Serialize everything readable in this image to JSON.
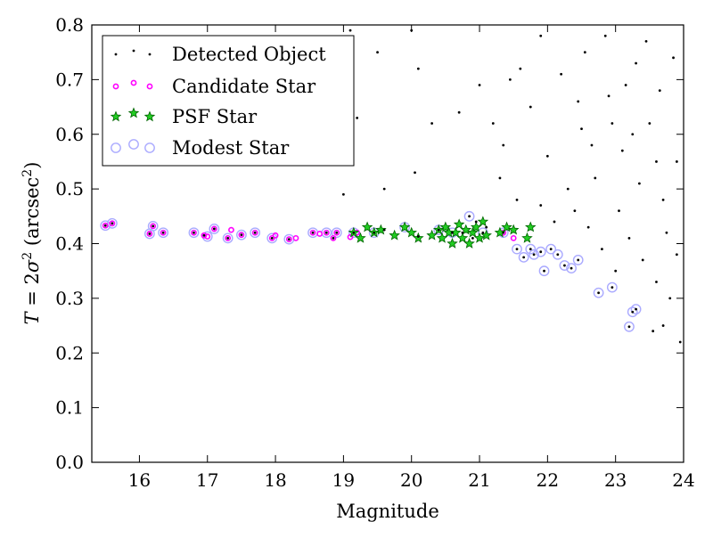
{
  "chart_data": {
    "type": "scatter",
    "title": "",
    "xlabel": "Magnitude",
    "ylabel": "T = 2σ² (arcsec²)",
    "ylabel_parts": {
      "lead": "T",
      "eq": " = 2",
      "sym": "σ",
      "sup1": "2",
      "mid": " (arcsec",
      "sup2": "2",
      "tail": ")"
    },
    "xlim": [
      15.3,
      24.0
    ],
    "ylim": [
      0.0,
      0.8
    ],
    "xticks": [
      16,
      17,
      18,
      19,
      20,
      21,
      22,
      23,
      24
    ],
    "xtick_labels": [
      "16",
      "17",
      "18",
      "19",
      "20",
      "21",
      "22",
      "23",
      "24"
    ],
    "yticks": [
      0.0,
      0.1,
      0.2,
      0.3,
      0.4,
      0.5,
      0.6,
      0.7,
      0.8
    ],
    "ytick_labels": [
      "0.0",
      "0.1",
      "0.2",
      "0.3",
      "0.4",
      "0.5",
      "0.6",
      "0.7",
      "0.8"
    ],
    "grid": false,
    "legend_position": "top-left",
    "colors": {
      "detected": "#000000",
      "candidate": "#ff00ff",
      "psf_fill": "#22cc22",
      "psf_edge": "#006400",
      "modest": "#aaaaff"
    },
    "series": [
      {
        "name": "Detected Object",
        "marker": "dot",
        "points": [
          [
            15.5,
            0.433
          ],
          [
            15.6,
            0.437
          ],
          [
            16.15,
            0.418
          ],
          [
            16.2,
            0.432
          ],
          [
            16.35,
            0.42
          ],
          [
            16.8,
            0.42
          ],
          [
            16.95,
            0.415
          ],
          [
            17.1,
            0.427
          ],
          [
            17.3,
            0.41
          ],
          [
            17.5,
            0.416
          ],
          [
            17.7,
            0.42
          ],
          [
            17.95,
            0.41
          ],
          [
            18.2,
            0.408
          ],
          [
            18.55,
            0.42
          ],
          [
            18.75,
            0.42
          ],
          [
            18.85,
            0.41
          ],
          [
            18.9,
            0.42
          ],
          [
            19.15,
            0.42
          ],
          [
            19.45,
            0.42
          ],
          [
            19.6,
            0.425
          ],
          [
            20.1,
            0.413
          ],
          [
            20.4,
            0.425
          ],
          [
            20.6,
            0.42
          ],
          [
            20.75,
            0.42
          ],
          [
            20.9,
            0.41
          ],
          [
            20.95,
            0.44
          ],
          [
            21.05,
            0.42
          ],
          [
            21.1,
            0.43
          ],
          [
            21.35,
            0.42
          ],
          [
            21.55,
            0.39
          ],
          [
            21.65,
            0.375
          ],
          [
            21.75,
            0.39
          ],
          [
            21.8,
            0.38
          ],
          [
            21.9,
            0.385
          ],
          [
            21.95,
            0.35
          ],
          [
            22.05,
            0.39
          ],
          [
            22.15,
            0.38
          ],
          [
            22.25,
            0.36
          ],
          [
            22.35,
            0.355
          ],
          [
            22.45,
            0.37
          ],
          [
            22.75,
            0.31
          ],
          [
            22.95,
            0.32
          ],
          [
            23.25,
            0.275
          ],
          [
            23.3,
            0.28
          ],
          [
            23.2,
            0.248
          ],
          [
            20.85,
            0.45
          ],
          [
            19.0,
            0.49
          ],
          [
            19.6,
            0.5
          ],
          [
            20.05,
            0.53
          ],
          [
            20.3,
            0.62
          ],
          [
            20.7,
            0.64
          ],
          [
            21.0,
            0.69
          ],
          [
            20.1,
            0.72
          ],
          [
            19.1,
            0.79
          ],
          [
            19.2,
            0.63
          ],
          [
            19.5,
            0.75
          ],
          [
            20.0,
            0.79
          ],
          [
            21.2,
            0.62
          ],
          [
            21.35,
            0.58
          ],
          [
            21.6,
            0.72
          ],
          [
            21.9,
            0.78
          ],
          [
            22.2,
            0.71
          ],
          [
            22.5,
            0.61
          ],
          [
            22.7,
            0.52
          ],
          [
            22.9,
            0.67
          ],
          [
            23.1,
            0.57
          ],
          [
            23.3,
            0.73
          ],
          [
            23.5,
            0.62
          ],
          [
            23.7,
            0.48
          ],
          [
            23.9,
            0.55
          ],
          [
            22.1,
            0.44
          ],
          [
            22.4,
            0.46
          ],
          [
            22.6,
            0.43
          ],
          [
            22.8,
            0.39
          ],
          [
            23.0,
            0.35
          ],
          [
            23.2,
            0.41
          ],
          [
            23.4,
            0.37
          ],
          [
            23.6,
            0.33
          ],
          [
            23.8,
            0.3
          ],
          [
            23.95,
            0.22
          ],
          [
            23.7,
            0.25
          ],
          [
            23.55,
            0.24
          ],
          [
            22.3,
            0.5
          ],
          [
            22.0,
            0.56
          ],
          [
            21.75,
            0.65
          ],
          [
            21.45,
            0.7
          ],
          [
            22.55,
            0.75
          ],
          [
            22.85,
            0.78
          ],
          [
            23.15,
            0.69
          ],
          [
            23.45,
            0.77
          ],
          [
            23.65,
            0.68
          ],
          [
            23.85,
            0.74
          ],
          [
            21.3,
            0.52
          ],
          [
            21.55,
            0.48
          ],
          [
            21.9,
            0.47
          ],
          [
            22.65,
            0.58
          ],
          [
            23.05,
            0.46
          ],
          [
            23.35,
            0.51
          ],
          [
            23.75,
            0.42
          ],
          [
            23.9,
            0.38
          ],
          [
            22.95,
            0.62
          ],
          [
            23.25,
            0.6
          ],
          [
            23.6,
            0.55
          ],
          [
            22.45,
            0.66
          ]
        ]
      },
      {
        "name": "Candidate Star",
        "marker": "small-circle",
        "points": [
          [
            15.5,
            0.433
          ],
          [
            15.6,
            0.437
          ],
          [
            16.15,
            0.418
          ],
          [
            16.2,
            0.432
          ],
          [
            16.35,
            0.42
          ],
          [
            16.8,
            0.42
          ],
          [
            16.95,
            0.415
          ],
          [
            17.0,
            0.413
          ],
          [
            17.1,
            0.427
          ],
          [
            17.3,
            0.41
          ],
          [
            17.35,
            0.425
          ],
          [
            17.5,
            0.416
          ],
          [
            17.7,
            0.42
          ],
          [
            17.95,
            0.41
          ],
          [
            18.0,
            0.415
          ],
          [
            18.2,
            0.408
          ],
          [
            18.3,
            0.41
          ],
          [
            18.55,
            0.42
          ],
          [
            18.65,
            0.418
          ],
          [
            18.75,
            0.42
          ],
          [
            18.85,
            0.41
          ],
          [
            18.9,
            0.42
          ],
          [
            19.1,
            0.412
          ],
          [
            19.2,
            0.42
          ],
          [
            21.35,
            0.42
          ],
          [
            21.5,
            0.41
          ]
        ]
      },
      {
        "name": "PSF Star",
        "marker": "star",
        "points": [
          [
            19.15,
            0.42
          ],
          [
            19.25,
            0.41
          ],
          [
            19.35,
            0.43
          ],
          [
            19.45,
            0.42
          ],
          [
            19.55,
            0.425
          ],
          [
            19.75,
            0.415
          ],
          [
            19.9,
            0.43
          ],
          [
            20.0,
            0.42
          ],
          [
            20.1,
            0.41
          ],
          [
            20.3,
            0.415
          ],
          [
            20.4,
            0.425
          ],
          [
            20.45,
            0.41
          ],
          [
            20.5,
            0.43
          ],
          [
            20.55,
            0.42
          ],
          [
            20.6,
            0.4
          ],
          [
            20.65,
            0.42
          ],
          [
            20.7,
            0.435
          ],
          [
            20.75,
            0.41
          ],
          [
            20.8,
            0.425
          ],
          [
            20.85,
            0.4
          ],
          [
            20.9,
            0.42
          ],
          [
            20.95,
            0.43
          ],
          [
            21.0,
            0.41
          ],
          [
            21.05,
            0.44
          ],
          [
            21.1,
            0.415
          ],
          [
            21.3,
            0.42
          ],
          [
            21.4,
            0.43
          ],
          [
            21.5,
            0.425
          ],
          [
            21.7,
            0.41
          ],
          [
            21.75,
            0.43
          ]
        ]
      },
      {
        "name": "Modest Star",
        "marker": "open-circle",
        "points": [
          [
            15.5,
            0.433
          ],
          [
            15.6,
            0.437
          ],
          [
            16.15,
            0.418
          ],
          [
            16.2,
            0.432
          ],
          [
            16.35,
            0.42
          ],
          [
            16.8,
            0.42
          ],
          [
            17.0,
            0.413
          ],
          [
            17.1,
            0.427
          ],
          [
            17.3,
            0.41
          ],
          [
            17.5,
            0.416
          ],
          [
            17.7,
            0.42
          ],
          [
            17.95,
            0.41
          ],
          [
            18.2,
            0.408
          ],
          [
            18.55,
            0.42
          ],
          [
            18.75,
            0.42
          ],
          [
            18.9,
            0.42
          ],
          [
            19.15,
            0.42
          ],
          [
            19.45,
            0.42
          ],
          [
            19.9,
            0.43
          ],
          [
            20.4,
            0.425
          ],
          [
            20.6,
            0.42
          ],
          [
            20.85,
            0.45
          ],
          [
            21.05,
            0.42
          ],
          [
            21.35,
            0.42
          ],
          [
            21.55,
            0.39
          ],
          [
            21.65,
            0.375
          ],
          [
            21.75,
            0.39
          ],
          [
            21.8,
            0.38
          ],
          [
            21.9,
            0.385
          ],
          [
            21.95,
            0.35
          ],
          [
            22.05,
            0.39
          ],
          [
            22.15,
            0.38
          ],
          [
            22.25,
            0.36
          ],
          [
            22.35,
            0.355
          ],
          [
            22.45,
            0.37
          ],
          [
            22.75,
            0.31
          ],
          [
            22.95,
            0.32
          ],
          [
            23.25,
            0.275
          ],
          [
            23.3,
            0.28
          ],
          [
            23.2,
            0.248
          ]
        ]
      }
    ]
  }
}
